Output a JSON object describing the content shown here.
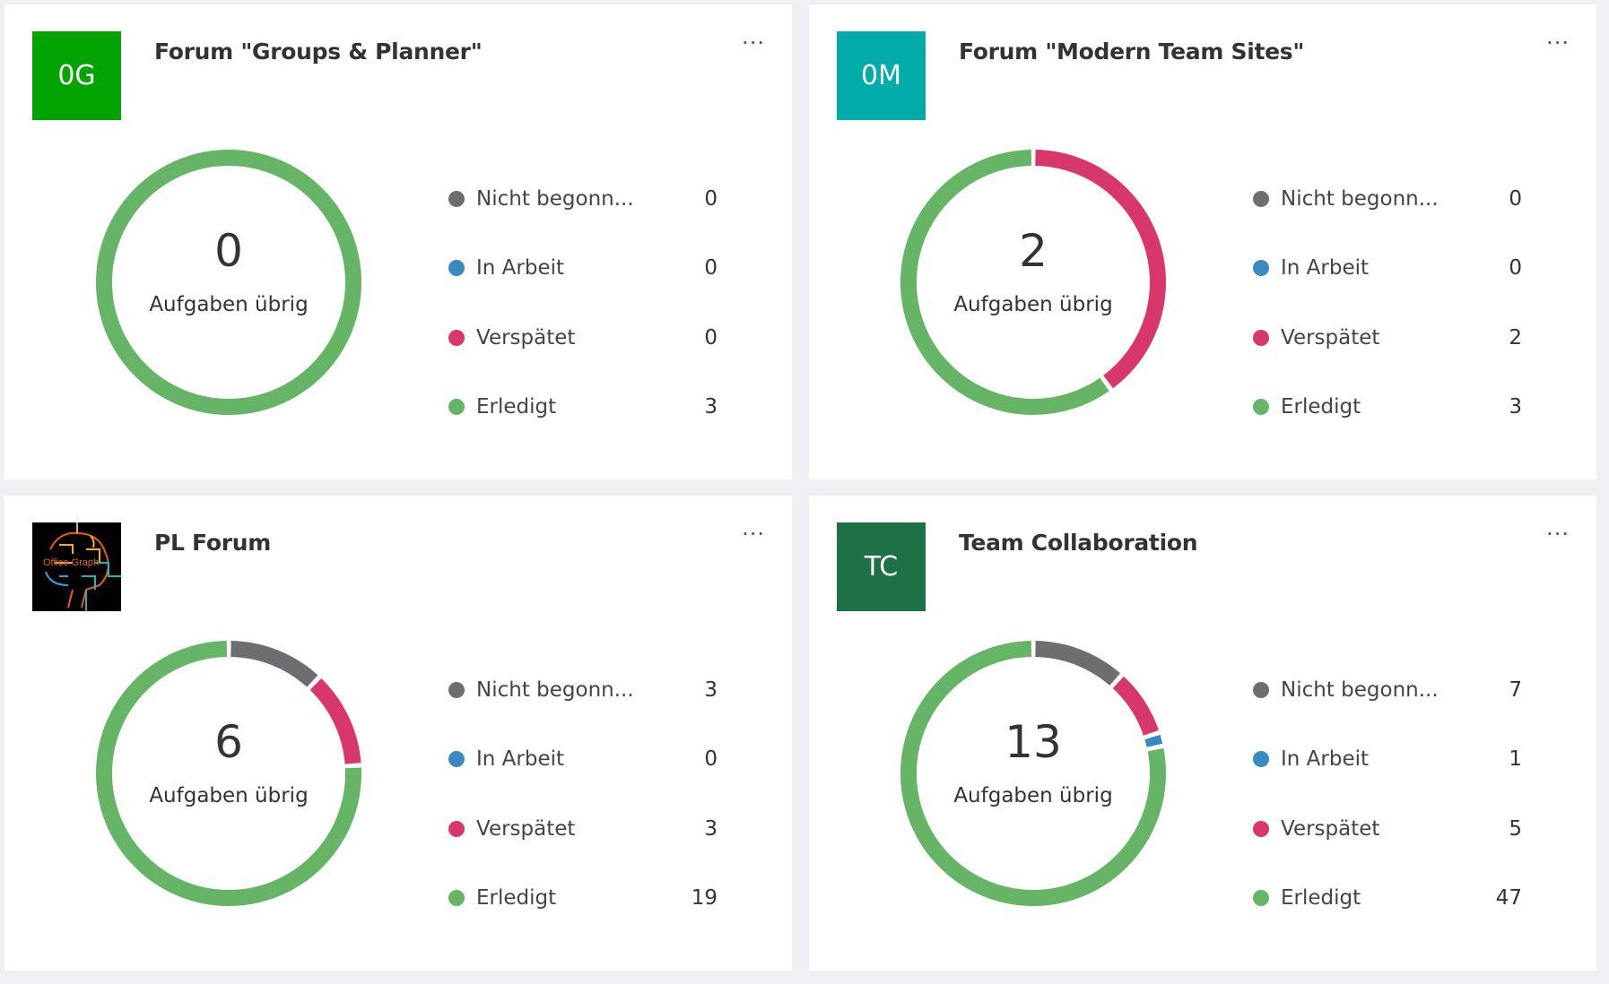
{
  "colors": {
    "not_started": "#6e6e70",
    "in_progress": "#3a89c1",
    "late": "#d7376a",
    "done": "#66b466",
    "background": "#eef0f3"
  },
  "legend_labels": [
    "Nicht begonn...",
    "In Arbeit",
    "Verspätet",
    "Erledigt"
  ],
  "center_label": "Aufgaben übrig",
  "more_label": "...",
  "cards": [
    {
      "title": "Forum \"Groups & Planner\"",
      "initials": "0G",
      "avatar_color": "#00a300",
      "remaining": "0",
      "values": [
        0,
        0,
        0,
        3
      ]
    },
    {
      "title": "Forum \"Modern Team Sites\"",
      "initials": "0M",
      "avatar_color": "#00aba9",
      "remaining": "2",
      "values": [
        0,
        0,
        2,
        3
      ]
    },
    {
      "title": "PL Forum",
      "initials": "",
      "avatar_image": "Office Graph",
      "avatar_color": "#000000",
      "remaining": "6",
      "values": [
        3,
        0,
        3,
        19
      ]
    },
    {
      "title": "Team Collaboration",
      "initials": "TC",
      "avatar_color": "#1e7145",
      "remaining": "13",
      "values": [
        7,
        1,
        5,
        47
      ]
    }
  ]
}
